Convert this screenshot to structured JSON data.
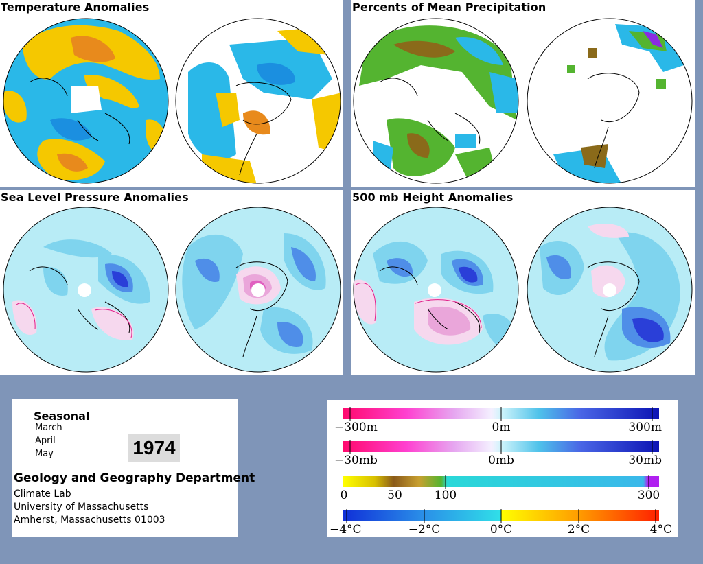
{
  "panels": {
    "temperature": {
      "title": "Temperature Anomalies"
    },
    "precipitation": {
      "title": "Percents of Mean Precipitation"
    },
    "pressure": {
      "title": "Sea Level Pressure Anomalies"
    },
    "height": {
      "title": "500 mb Height Anomalies"
    }
  },
  "info": {
    "season_heading": "Seasonal",
    "months": [
      "March",
      "April",
      "May"
    ],
    "year": "1974",
    "department": "Geology and Geography Department",
    "lab": "Climate Lab",
    "university": "University of Massachusetts",
    "address": "Amherst, Massachusetts 01003"
  },
  "legends": {
    "height": {
      "labels": [
        "−300m",
        "0m",
        "300m"
      ]
    },
    "pressure": {
      "labels": [
        "−30mb",
        "0mb",
        "30mb"
      ]
    },
    "precip": {
      "labels": [
        "0",
        "50",
        "100",
        "300"
      ]
    },
    "temp": {
      "labels": [
        "−4°C",
        "−2°C",
        "0°C",
        "2°C",
        "4°C"
      ]
    }
  },
  "colors": {
    "background": "#7f95b8",
    "anomaly_positive": "#2a3fd8",
    "anomaly_negative": "#ff1493",
    "neutral": "#b8ecf6",
    "warm": "#f0b400",
    "cool": "#1fb4e6"
  }
}
